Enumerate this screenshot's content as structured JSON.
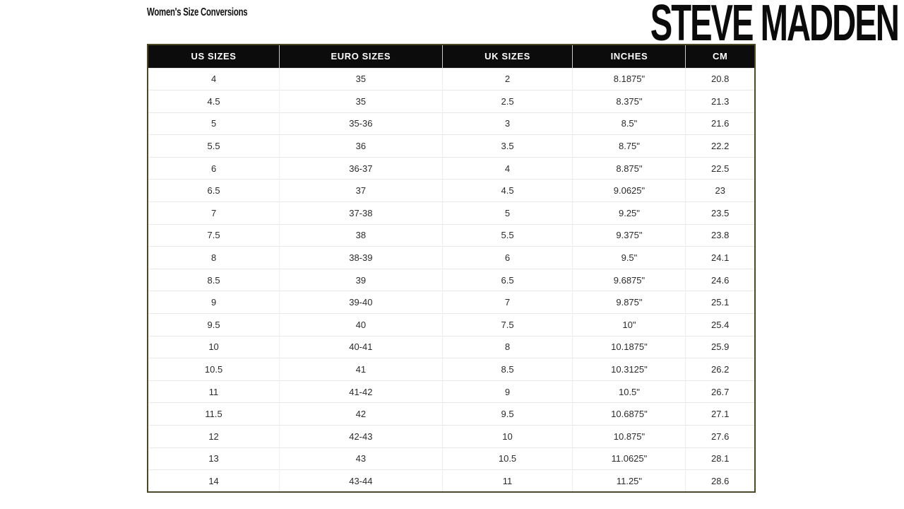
{
  "page": {
    "title": "Women's Size Conversions",
    "brand": "STEVE MADDEN"
  },
  "chart_data": {
    "type": "table",
    "title": "Women's Size Conversions",
    "columns": [
      "US SIZES",
      "EURO SIZES",
      "UK SIZES",
      "INCHES",
      "CM"
    ],
    "rows": [
      [
        "4",
        "35",
        "2",
        "8.1875\"",
        "20.8"
      ],
      [
        "4.5",
        "35",
        "2.5",
        "8.375\"",
        "21.3"
      ],
      [
        "5",
        "35-36",
        "3",
        "8.5\"",
        "21.6"
      ],
      [
        "5.5",
        "36",
        "3.5",
        "8.75\"",
        "22.2"
      ],
      [
        "6",
        "36-37",
        "4",
        "8.875\"",
        "22.5"
      ],
      [
        "6.5",
        "37",
        "4.5",
        "9.0625\"",
        "23"
      ],
      [
        "7",
        "37-38",
        "5",
        "9.25\"",
        "23.5"
      ],
      [
        "7.5",
        "38",
        "5.5",
        "9.375\"",
        "23.8"
      ],
      [
        "8",
        "38-39",
        "6",
        "9.5\"",
        "24.1"
      ],
      [
        "8.5",
        "39",
        "6.5",
        "9.6875\"",
        "24.6"
      ],
      [
        "9",
        "39-40",
        "7",
        "9.875\"",
        "25.1"
      ],
      [
        "9.5",
        "40",
        "7.5",
        "10\"",
        "25.4"
      ],
      [
        "10",
        "40-41",
        "8",
        "10.1875\"",
        "25.9"
      ],
      [
        "10.5",
        "41",
        "8.5",
        "10.3125\"",
        "26.2"
      ],
      [
        "11",
        "41-42",
        "9",
        "10.5\"",
        "26.7"
      ],
      [
        "11.5",
        "42",
        "9.5",
        "10.6875\"",
        "27.1"
      ],
      [
        "12",
        "42-43",
        "10",
        "10.875\"",
        "27.6"
      ],
      [
        "13",
        "43",
        "10.5",
        "11.0625\"",
        "28.1"
      ],
      [
        "14",
        "43-44",
        "11",
        "11.25\"",
        "28.6"
      ]
    ]
  },
  "colors": {
    "table_border": "#4b4a25",
    "header_bg": "#0c0c0c",
    "header_text": "#ffffff",
    "row_divider": "#e8e8e8",
    "cell_text": "#2b2b2b"
  }
}
